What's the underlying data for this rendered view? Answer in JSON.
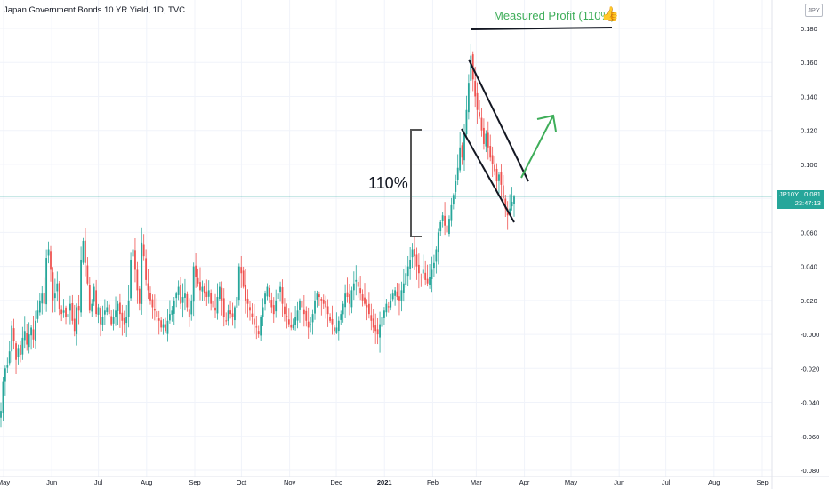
{
  "header": {
    "title": "Japan Government Bonds 10 YR Yield, 1D, TVC",
    "currency": "JPY"
  },
  "price_tag": {
    "symbol": "JP10Y",
    "value": "0.081",
    "countdown": "23:47:13"
  },
  "annotations": {
    "measured_profit": "Measured Profit (110%)",
    "pole_pct": "110%"
  },
  "colors": {
    "up": "#26a69a",
    "down": "#ef5350",
    "annotation_green": "#3fae5a",
    "grid": "#f0f3fa",
    "axis_text": "#131722"
  },
  "chart_data": {
    "type": "candlestick",
    "title": "Japan Government Bonds 10 YR Yield, 1D, TVC",
    "ylim": [
      -0.082,
      0.186
    ],
    "y_ticks": [
      "0.180",
      "0.160",
      "0.140",
      "0.120",
      "0.100",
      "0.080",
      "0.060",
      "0.040",
      "0.020",
      "-0.000",
      "-0.020",
      "-0.040",
      "-0.060",
      "-0.080"
    ],
    "y_tick_values": [
      0.18,
      0.16,
      0.14,
      0.12,
      0.1,
      0.08,
      0.06,
      0.04,
      0.02,
      0.0,
      -0.02,
      -0.04,
      -0.06,
      -0.08
    ],
    "x_ticks": [
      "May",
      "Jun",
      "Jul",
      "Aug",
      "Sep",
      "Oct",
      "Nov",
      "Dec",
      "2021",
      "Feb",
      "Mar",
      "Apr",
      "May",
      "Jun",
      "Jul",
      "Aug",
      "Sep"
    ],
    "x_tick_dates": [
      "2020-05-01",
      "2020-06-01",
      "2020-07-01",
      "2020-08-01",
      "2020-09-01",
      "2020-10-01",
      "2020-11-01",
      "2020-12-01",
      "2021-01-01",
      "2021-02-01",
      "2021-03-01",
      "2021-04-01",
      "2021-05-01",
      "2021-06-01",
      "2021-07-01",
      "2021-08-01",
      "2021-09-01"
    ],
    "last_value": 0.081,
    "closes": [
      -0.045,
      -0.028,
      -0.02,
      -0.018,
      -0.01,
      0.005,
      -0.004,
      -0.015,
      -0.008,
      -0.012,
      -0.002,
      0.002,
      -0.006,
      0.0,
      0.004,
      -0.003,
      0.008,
      0.014,
      0.02,
      0.024,
      0.018,
      0.045,
      0.05,
      0.038,
      0.02,
      0.024,
      0.03,
      0.015,
      0.012,
      0.014,
      0.01,
      0.012,
      0.018,
      0.008,
      0.002,
      0.016,
      0.014,
      0.044,
      0.055,
      0.042,
      0.03,
      0.014,
      0.018,
      0.028,
      0.012,
      0.016,
      0.006,
      0.01,
      0.014,
      0.016,
      0.012,
      0.006,
      0.01,
      0.014,
      0.018,
      0.012,
      0.008,
      0.006,
      0.01,
      0.02,
      0.044,
      0.05,
      0.038,
      0.026,
      0.018,
      0.054,
      0.046,
      0.032,
      0.026,
      0.02,
      0.016,
      0.014,
      0.01,
      0.008,
      0.004,
      0.006,
      0.002,
      0.008,
      0.012,
      0.014,
      0.02,
      0.024,
      0.028,
      0.018,
      0.022,
      0.024,
      0.016,
      0.01,
      0.02,
      0.04,
      0.034,
      0.03,
      0.026,
      0.028,
      0.024,
      0.022,
      0.026,
      0.018,
      0.016,
      0.014,
      0.022,
      0.028,
      0.02,
      0.01,
      0.008,
      0.014,
      0.012,
      0.01,
      0.016,
      0.022,
      0.04,
      0.036,
      0.028,
      0.02,
      0.018,
      0.014,
      0.01,
      0.006,
      0.004,
      0.0,
      0.01,
      0.016,
      0.024,
      0.028,
      0.022,
      0.016,
      0.012,
      0.02,
      0.024,
      0.028,
      0.018,
      0.012,
      0.01,
      0.006,
      0.004,
      0.006,
      0.01,
      0.014,
      0.02,
      0.016,
      0.012,
      0.008,
      0.004,
      0.006,
      0.012,
      0.02,
      0.024,
      0.022,
      0.02,
      0.018,
      0.016,
      0.012,
      0.008,
      0.006,
      0.002,
      0.004,
      0.008,
      0.012,
      0.018,
      0.024,
      0.022,
      0.018,
      0.026,
      0.03,
      0.032,
      0.028,
      0.024,
      0.02,
      0.018,
      0.016,
      0.012,
      0.008,
      0.004,
      0.002,
      0.0,
      0.006,
      0.01,
      0.014,
      0.018,
      0.016,
      0.02,
      0.024,
      0.026,
      0.022,
      0.02,
      0.026,
      0.03,
      0.036,
      0.04,
      0.044,
      0.05,
      0.046,
      0.04,
      0.036,
      0.034,
      0.038,
      0.032,
      0.03,
      0.034,
      0.038,
      0.042,
      0.05,
      0.06,
      0.066,
      0.07,
      0.064,
      0.06,
      0.068,
      0.076,
      0.082,
      0.09,
      0.098,
      0.11,
      0.104,
      0.118,
      0.132,
      0.148,
      0.164,
      0.15,
      0.14,
      0.132,
      0.128,
      0.12,
      0.112,
      0.118,
      0.11,
      0.104,
      0.1,
      0.096,
      0.09,
      0.094,
      0.088,
      0.08,
      0.074,
      0.07,
      0.074,
      0.078,
      0.081
    ]
  }
}
